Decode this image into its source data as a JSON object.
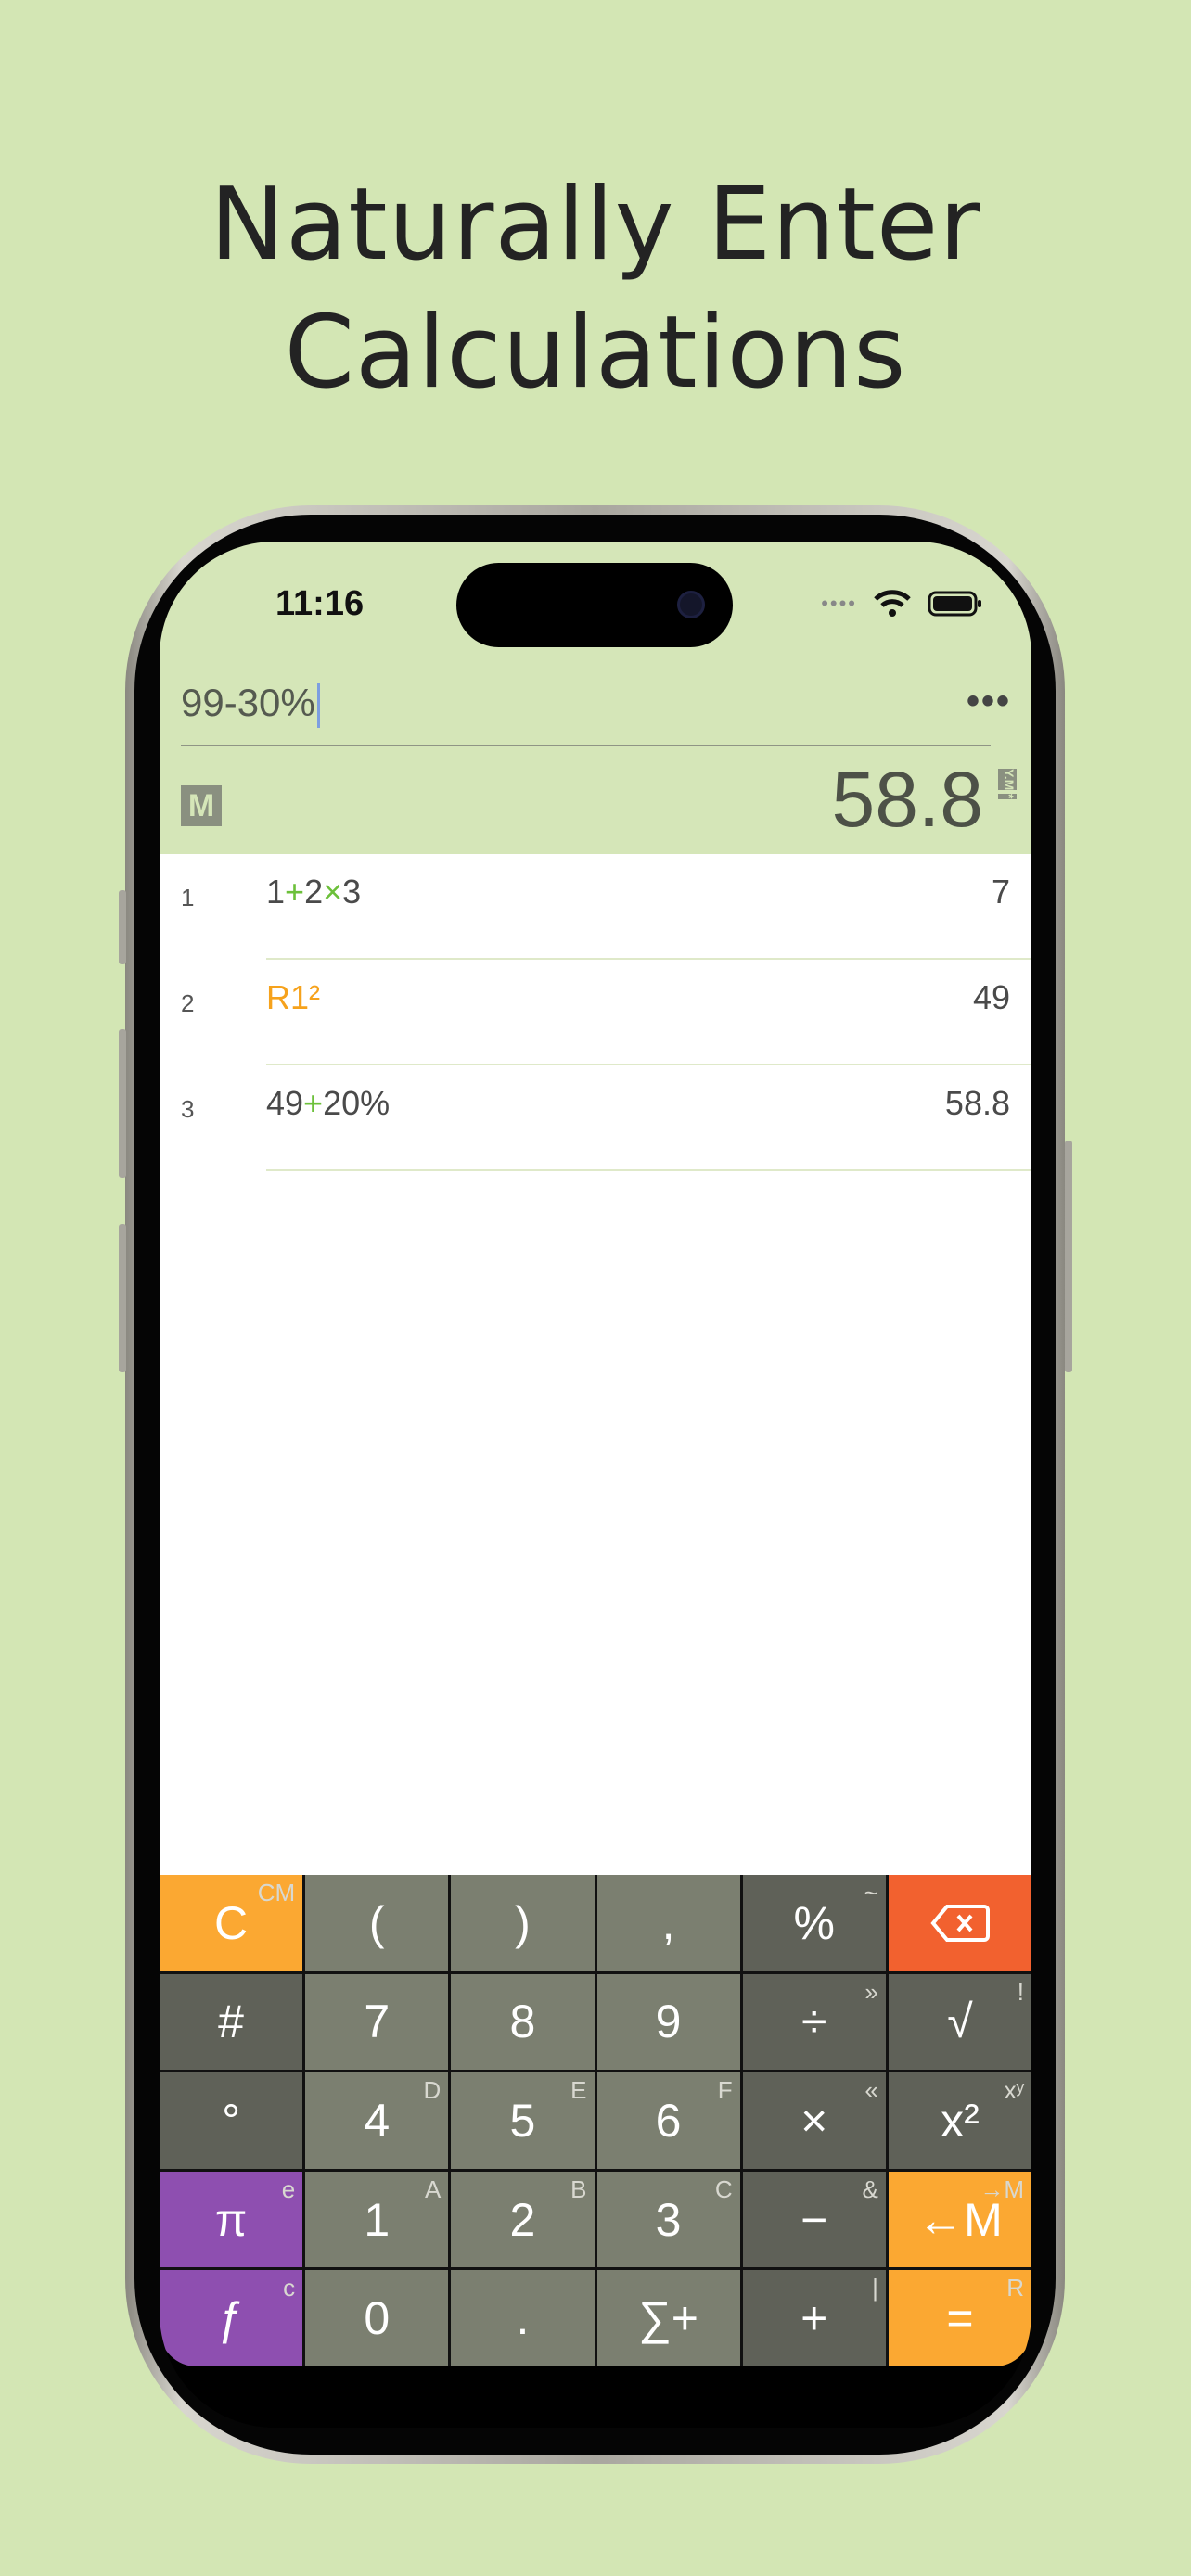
{
  "headline": [
    "Naturally Enter",
    "Calculations"
  ],
  "status": {
    "time": "11:16"
  },
  "input": {
    "value": "99-30%",
    "more_label": "•••"
  },
  "display": {
    "memory_badge": "M",
    "result": "58.8",
    "tags": [
      "Y.M",
      "*"
    ]
  },
  "history": [
    {
      "num": "1",
      "expr": [
        [
          "1",
          ""
        ],
        [
          "+",
          "op"
        ],
        [
          "2",
          ""
        ],
        [
          "×",
          "op"
        ],
        [
          "3",
          ""
        ]
      ],
      "value": "7"
    },
    {
      "num": "2",
      "expr": [
        [
          "R1²",
          "ref"
        ]
      ],
      "value": "49"
    },
    {
      "num": "3",
      "expr": [
        [
          "49",
          ""
        ],
        [
          "+",
          "op"
        ],
        [
          "20%",
          ""
        ]
      ],
      "value": "58.8"
    }
  ],
  "keys": [
    {
      "label": "C",
      "sub": "CM",
      "style": "o",
      "name": "clear"
    },
    {
      "label": "(",
      "sub": "",
      "style": "",
      "name": "open-paren"
    },
    {
      "label": ")",
      "sub": "",
      "style": "",
      "name": "close-paren"
    },
    {
      "label": ",",
      "sub": "",
      "style": "",
      "name": "comma"
    },
    {
      "label": "%",
      "sub": "~",
      "style": "d",
      "name": "percent"
    },
    {
      "label": "⌫",
      "sub": "",
      "style": "r",
      "name": "backspace"
    },
    {
      "label": "#",
      "sub": "",
      "style": "d",
      "name": "hash"
    },
    {
      "label": "7",
      "sub": "",
      "style": "",
      "name": "7"
    },
    {
      "label": "8",
      "sub": "",
      "style": "",
      "name": "8"
    },
    {
      "label": "9",
      "sub": "",
      "style": "",
      "name": "9"
    },
    {
      "label": "÷",
      "sub": "»",
      "style": "d",
      "name": "divide"
    },
    {
      "label": "√",
      "sub": "!",
      "style": "d",
      "name": "sqrt"
    },
    {
      "label": "°",
      "sub": "",
      "style": "d",
      "name": "degree"
    },
    {
      "label": "4",
      "sub": "D",
      "style": "",
      "name": "4"
    },
    {
      "label": "5",
      "sub": "E",
      "style": "",
      "name": "5"
    },
    {
      "label": "6",
      "sub": "F",
      "style": "",
      "name": "6"
    },
    {
      "label": "×",
      "sub": "«",
      "style": "d",
      "name": "multiply"
    },
    {
      "label": "x²",
      "sub": "xʸ",
      "style": "d",
      "name": "square"
    },
    {
      "label": "π",
      "sub": "e",
      "style": "p",
      "name": "pi"
    },
    {
      "label": "1",
      "sub": "A",
      "style": "",
      "name": "1"
    },
    {
      "label": "2",
      "sub": "B",
      "style": "",
      "name": "2"
    },
    {
      "label": "3",
      "sub": "C",
      "style": "",
      "name": "3"
    },
    {
      "label": "−",
      "sub": "&",
      "style": "d",
      "name": "minus"
    },
    {
      "label": "←M",
      "sub": "→M",
      "style": "o",
      "name": "memory-recall"
    },
    {
      "label": "ƒ",
      "sub": "c",
      "style": "p",
      "name": "function"
    },
    {
      "label": "0",
      "sub": "",
      "style": "",
      "name": "0"
    },
    {
      "label": ".",
      "sub": "",
      "style": "",
      "name": "decimal"
    },
    {
      "label": "∑+",
      "sub": "",
      "style": "",
      "name": "sum"
    },
    {
      "label": "+",
      "sub": "|",
      "style": "d",
      "name": "plus"
    },
    {
      "label": "=",
      "sub": "R",
      "style": "o",
      "name": "equals"
    }
  ],
  "colors": {
    "background": "#d3e6b4",
    "header": "#d5e6b8",
    "orange": "#fba832",
    "purple": "#8e4fb0",
    "backspace": "#f2612f",
    "operator_green": "#6cc03a"
  }
}
